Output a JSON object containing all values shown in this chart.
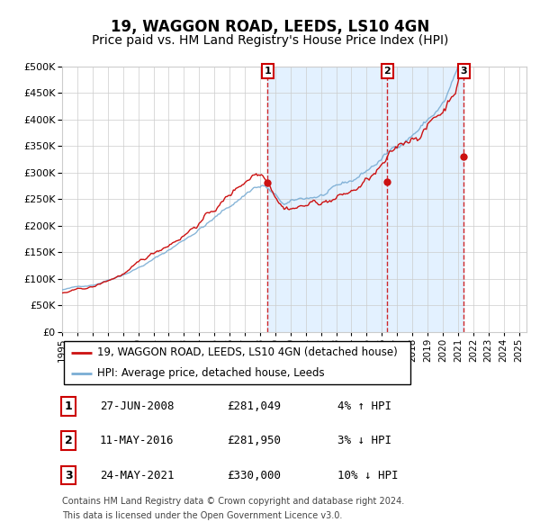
{
  "title": "19, WAGGON ROAD, LEEDS, LS10 4GN",
  "subtitle": "Price paid vs. HM Land Registry's House Price Index (HPI)",
  "legend_line1": "19, WAGGON ROAD, LEEDS, LS10 4GN (detached house)",
  "legend_line2": "HPI: Average price, detached house, Leeds",
  "transactions": [
    {
      "num": 1,
      "date": "27-JUN-2008",
      "price": 281049,
      "pct": "4%",
      "dir": "↑",
      "label": "HPI"
    },
    {
      "num": 2,
      "date": "11-MAY-2016",
      "price": 281950,
      "pct": "3%",
      "dir": "↓",
      "label": "HPI"
    },
    {
      "num": 3,
      "date": "24-MAY-2021",
      "price": 330000,
      "pct": "10%",
      "dir": "↓",
      "label": "HPI"
    }
  ],
  "transaction_dates_decimal": [
    2008.49,
    2016.36,
    2021.39
  ],
  "trans_prices": [
    281049,
    281950,
    330000
  ],
  "ylim": [
    0,
    500000
  ],
  "yticks": [
    0,
    50000,
    100000,
    150000,
    200000,
    250000,
    300000,
    350000,
    400000,
    450000,
    500000
  ],
  "xlim": [
    1995.0,
    2025.5
  ],
  "hpi_color": "#7aadd4",
  "price_color": "#cc1111",
  "marker_color": "#cc1111",
  "dashed_color": "#cc1111",
  "bg_shaded_color": "#ddeeff",
  "grid_color": "#cccccc",
  "footnote_line1": "Contains HM Land Registry data © Crown copyright and database right 2024.",
  "footnote_line2": "This data is licensed under the Open Government Licence v3.0.",
  "title_fontsize": 12,
  "subtitle_fontsize": 10,
  "axis_fontsize": 8,
  "legend_fontsize": 8.5,
  "table_fontsize": 9,
  "footnote_fontsize": 7
}
